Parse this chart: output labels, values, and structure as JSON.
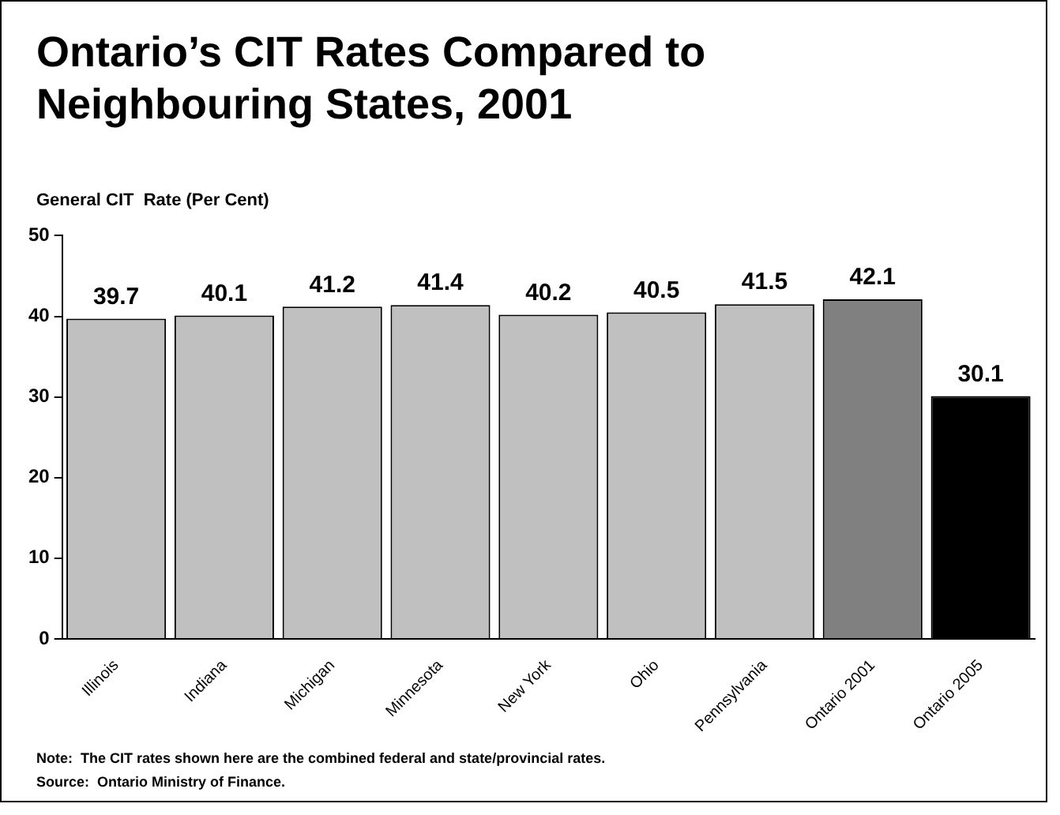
{
  "chart_data": {
    "type": "bar",
    "title": "Ontario’s CIT Rates Compared to Neighbouring States, 2001",
    "ylabel": "General CIT  Rate (Per Cent)",
    "categories": [
      "Illinois",
      "Indiana",
      "Michigan",
      "Minnesota",
      "New York",
      "Ohio",
      "Pennsylvania",
      "Ontario 2001",
      "Ontario 2005"
    ],
    "values": [
      39.7,
      40.1,
      41.2,
      41.4,
      40.2,
      40.5,
      41.5,
      42.1,
      30.1
    ],
    "colors": [
      "#c0c0c0",
      "#c0c0c0",
      "#c0c0c0",
      "#c0c0c0",
      "#c0c0c0",
      "#c0c0c0",
      "#c0c0c0",
      "#808080",
      "#000000"
    ],
    "ylim": [
      0,
      50
    ],
    "yticks": [
      0,
      10,
      20,
      30,
      40,
      50
    ],
    "data_labels": true,
    "annotations": [
      "Note:  The CIT rates shown here are the combined federal and state/provincial rates.",
      "Source:  Ontario Ministry of Finance."
    ]
  }
}
